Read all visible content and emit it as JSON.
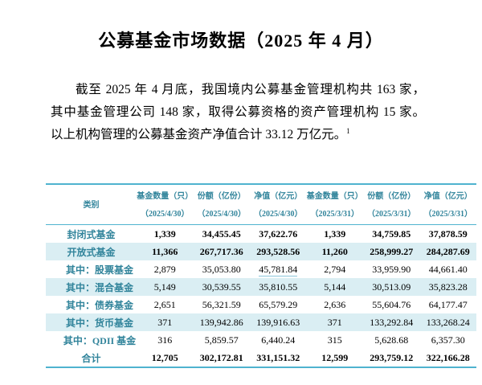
{
  "title": "公募基金市场数据（2025 年 4 月）",
  "intro": {
    "lines": [
      "截至 2025 年 4 月底，我国境内公募基金管理机构共 163 家，",
      "其中基金管理公司 148 家，取得公募资格的资产管理机构 15 家。",
      "以上机构管理的公募基金资产净值合计 33.12 万亿元。"
    ],
    "footnote_marker": "1"
  },
  "table": {
    "columns": [
      {
        "label": "类别",
        "sub": ""
      },
      {
        "label": "基金数量（只）",
        "sub": "（2025/4/30）"
      },
      {
        "label": "份额（亿份）",
        "sub": "（2025/4/30）"
      },
      {
        "label": "净值（亿元）",
        "sub": "（2025/4/30）"
      },
      {
        "label": "基金数量（只）",
        "sub": "（2025/3/31）"
      },
      {
        "label": "份额（亿份）",
        "sub": "（2025/3/31）"
      },
      {
        "label": "净值（亿元）",
        "sub": "（2025/3/31）"
      }
    ],
    "rows": [
      {
        "label": "封闭式基金",
        "indent": false,
        "bold": true,
        "striped": false,
        "values": [
          "1,339",
          "34,455.45",
          "37,622.76",
          "1,339",
          "34,759.85",
          "37,878.59"
        ]
      },
      {
        "label": "开放式基金",
        "indent": false,
        "bold": true,
        "striped": true,
        "values": [
          "11,366",
          "267,717.36",
          "293,528.56",
          "11,260",
          "258,999.27",
          "284,287.69"
        ]
      },
      {
        "label": "其中：股票基金",
        "indent": true,
        "bold": false,
        "striped": false,
        "values": [
          "2,879",
          "35,053.80",
          "45,781.84",
          "2,794",
          "33,959.90",
          "44,661.40"
        ],
        "underline_col": 2
      },
      {
        "label": "其中：混合基金",
        "indent": true,
        "bold": false,
        "striped": true,
        "values": [
          "5,149",
          "30,539.55",
          "35,810.55",
          "5,144",
          "30,513.09",
          "35,823.28"
        ]
      },
      {
        "label": "其中：债券基金",
        "indent": true,
        "bold": false,
        "striped": false,
        "values": [
          "2,651",
          "56,321.59",
          "65,579.29",
          "2,636",
          "55,604.76",
          "64,177.47"
        ]
      },
      {
        "label": "其中：货币基金",
        "indent": true,
        "bold": false,
        "striped": true,
        "values": [
          "371",
          "139,942.86",
          "139,916.63",
          "371",
          "133,292.84",
          "133,268.24"
        ]
      },
      {
        "label": "其中：QDII 基金",
        "indent": true,
        "bold": false,
        "striped": false,
        "values": [
          "316",
          "5,859.57",
          "6,440.24",
          "315",
          "5,628.68",
          "6,357.30"
        ]
      },
      {
        "label": "合计",
        "indent": false,
        "bold": true,
        "striped": false,
        "values": [
          "12,705",
          "302,172.81",
          "331,151.32",
          "12,599",
          "293,759.12",
          "322,166.28"
        ]
      }
    ]
  },
  "colors": {
    "accent_teal": "#31849B",
    "rule_line": "#4FB3CF",
    "stripe_bg": "#DAEEF3"
  }
}
